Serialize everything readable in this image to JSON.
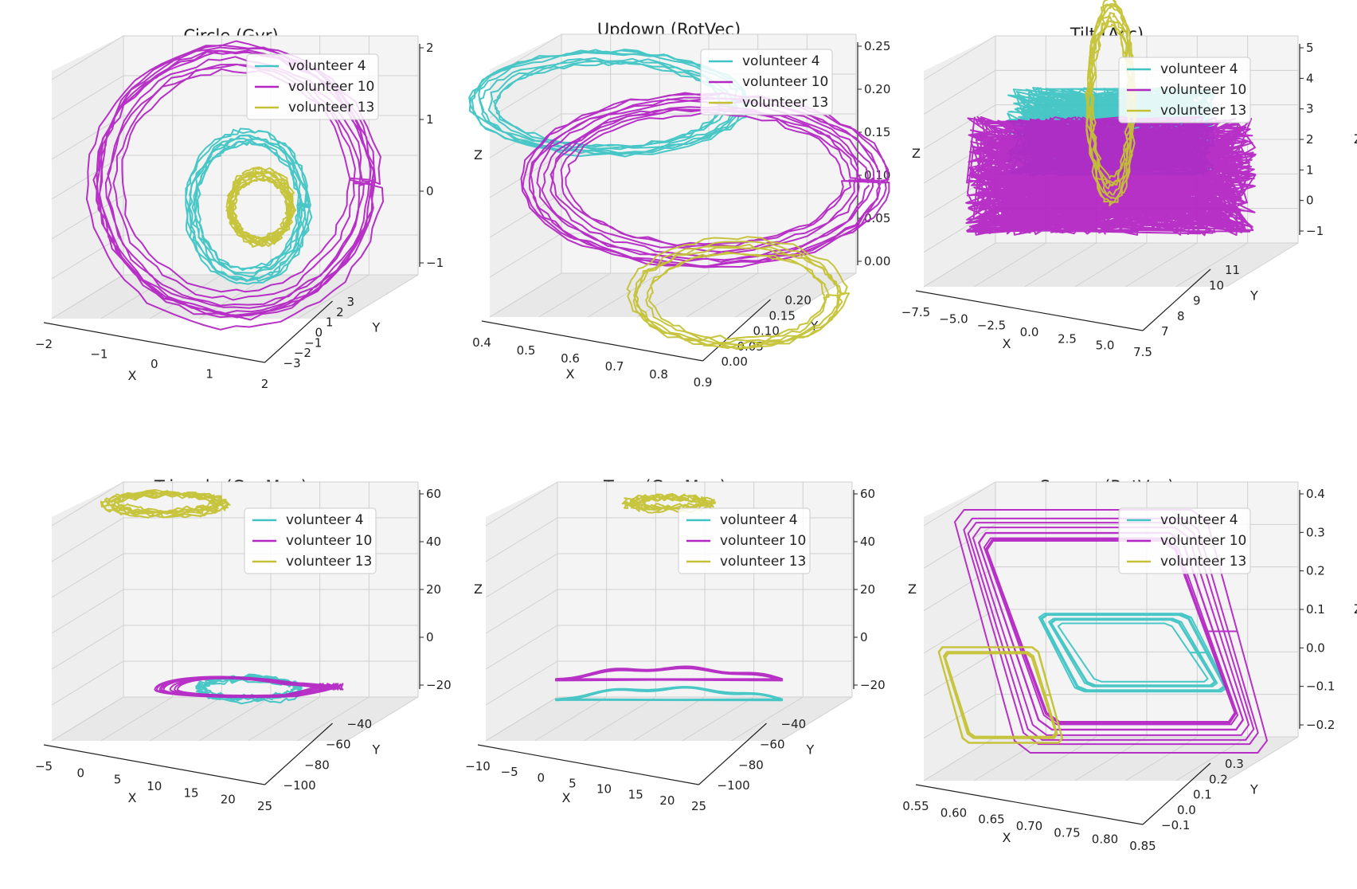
{
  "figure": {
    "legend": [
      "volunteer 4",
      "volunteer 10",
      "volunteer 13"
    ],
    "colors": {
      "v4": "#3fc4c4",
      "v10": "#b326c4",
      "v13": "#c4c234"
    },
    "pane_color": "#eeeeee",
    "grid_color": "#d0d0d0"
  },
  "chart_data": [
    {
      "type": "line3d",
      "title": "Circle (Gyr)",
      "xlabel": "X",
      "ylabel": "Y",
      "zlabel": "Z",
      "xticks": [
        "−2",
        "−1",
        "0",
        "1",
        "2"
      ],
      "yticks": [
        "−3",
        "−2",
        "−1",
        "0",
        "1",
        "2",
        "3"
      ],
      "zticks": [
        "−1",
        "0",
        "1",
        "2"
      ],
      "xlim": [
        -2.5,
        2.5
      ],
      "ylim": [
        -3.5,
        3.5
      ],
      "zlim": [
        -1.5,
        2.5
      ],
      "legend_position": "top-right",
      "series": [
        {
          "name": "volunteer 4",
          "shape": "loops",
          "center": [
            0.2,
            0.0
          ],
          "radius": [
            0.9,
            1.2
          ],
          "loops": 8
        },
        {
          "name": "volunteer 10",
          "shape": "loops",
          "center": [
            0.0,
            0.4
          ],
          "radius": [
            2.0,
            2.1
          ],
          "loops": 10
        },
        {
          "name": "volunteer 13",
          "shape": "loops",
          "center": [
            0.4,
            0.0
          ],
          "radius": [
            0.45,
            0.55
          ],
          "loops": 10
        }
      ]
    },
    {
      "type": "line3d",
      "title": "Updown (RotVec)",
      "xlabel": "X",
      "ylabel": "Y",
      "zlabel": "Z",
      "xticks": [
        "0.4",
        "0.5",
        "0.6",
        "0.7",
        "0.8",
        "0.9"
      ],
      "yticks": [
        "0.00",
        "0.05",
        "0.10",
        "0.15",
        "0.20"
      ],
      "zticks": [
        "0.00",
        "0.05",
        "0.10",
        "0.15",
        "0.20",
        "0.25"
      ],
      "xlim": [
        0.4,
        0.9
      ],
      "ylim": [
        0.0,
        0.2
      ],
      "zlim": [
        0.0,
        0.25
      ],
      "legend_position": "top-right",
      "series": [
        {
          "name": "volunteer 4",
          "shape": "loops",
          "center": [
            0.55,
            0.2
          ],
          "radius": [
            0.2,
            0.05
          ],
          "loops": 8
        },
        {
          "name": "volunteer 10",
          "shape": "loops",
          "center": [
            0.7,
            0.12
          ],
          "radius": [
            0.25,
            0.08
          ],
          "loops": 10
        },
        {
          "name": "volunteer 13",
          "shape": "loops",
          "center": [
            0.75,
            0.0
          ],
          "radius": [
            0.15,
            0.05
          ],
          "loops": 6
        }
      ]
    },
    {
      "type": "line3d",
      "title": "Tilt (Acc)",
      "xlabel": "X",
      "ylabel": "Y",
      "zlabel": "Z",
      "xticks": [
        "−7.5",
        "−5.0",
        "−2.5",
        "0.0",
        "2.5",
        "5.0",
        "7.5"
      ],
      "yticks": [
        "7",
        "8",
        "9",
        "10",
        "11"
      ],
      "zticks": [
        "−1",
        "0",
        "1",
        "2",
        "3",
        "4",
        "5"
      ],
      "xlim": [
        -8,
        8
      ],
      "ylim": [
        7,
        11
      ],
      "zlim": [
        -1.5,
        5.5
      ],
      "legend_position": "top-right",
      "series": [
        {
          "name": "volunteer 4",
          "shape": "scribble",
          "center": [
            0.0,
            3.0
          ],
          "radius": [
            5.0,
            1.5
          ],
          "loops": 12
        },
        {
          "name": "volunteer 10",
          "shape": "scribble",
          "center": [
            0.0,
            1.5
          ],
          "radius": [
            7.0,
            2.0
          ],
          "loops": 20
        },
        {
          "name": "volunteer 13",
          "shape": "loops",
          "center": [
            0.0,
            4.0
          ],
          "radius": [
            1.0,
            3.0
          ],
          "loops": 8
        }
      ]
    },
    {
      "type": "line3d",
      "title": "Triangle (GeoMag)",
      "xlabel": "X",
      "ylabel": "Y",
      "zlabel": "Z",
      "xticks": [
        "−5",
        "0",
        "5",
        "10",
        "15",
        "20",
        "25"
      ],
      "yticks": [
        "−100",
        "−80",
        "−60",
        "−40"
      ],
      "zticks": [
        "−20",
        "0",
        "20",
        "40",
        "60"
      ],
      "xlim": [
        -7,
        28
      ],
      "ylim": [
        -110,
        -35
      ],
      "zlim": [
        -35,
        75
      ],
      "legend_position": "top-right",
      "series": [
        {
          "name": "volunteer 4",
          "shape": "loops",
          "center": [
            12,
            -20
          ],
          "radius": [
            5,
            5
          ],
          "loops": 6
        },
        {
          "name": "volunteer 10",
          "shape": "triangle",
          "center": [
            12,
            -20
          ],
          "radius": [
            9,
            10
          ],
          "loops": 8
        },
        {
          "name": "volunteer 13",
          "shape": "loops",
          "center": [
            3,
            75
          ],
          "radius": [
            6,
            5
          ],
          "loops": 8
        }
      ]
    },
    {
      "type": "line3d",
      "title": "Turn (GeoMag)",
      "xlabel": "X",
      "ylabel": "Y",
      "zlabel": "Z",
      "xticks": [
        "−10",
        "−5",
        "0",
        "5",
        "10",
        "15",
        "20",
        "25"
      ],
      "yticks": [
        "−100",
        "−80",
        "−60",
        "−40"
      ],
      "zticks": [
        "−20",
        "0",
        "20",
        "40",
        "60"
      ],
      "xlim": [
        -12,
        28
      ],
      "ylim": [
        -110,
        -35
      ],
      "zlim": [
        -35,
        75
      ],
      "legend_position": "top-right",
      "series": [
        {
          "name": "volunteer 4",
          "shape": "arc",
          "center": [
            8,
            -25
          ],
          "radius": [
            14,
            4
          ],
          "loops": 6
        },
        {
          "name": "volunteer 10",
          "shape": "arc",
          "center": [
            8,
            -15
          ],
          "radius": [
            14,
            4
          ],
          "loops": 6
        },
        {
          "name": "volunteer 13",
          "shape": "loops",
          "center": [
            8,
            75
          ],
          "radius": [
            5,
            3
          ],
          "loops": 6
        }
      ]
    },
    {
      "type": "line3d",
      "title": "Square (RotVec)",
      "xlabel": "X",
      "ylabel": "Y",
      "zlabel": "Z",
      "xticks": [
        "0.55",
        "0.60",
        "0.65",
        "0.70",
        "0.75",
        "0.80",
        "0.85"
      ],
      "yticks": [
        "−0.1",
        "0.0",
        "0.1",
        "0.2",
        "0.3"
      ],
      "zticks": [
        "−0.2",
        "−0.1",
        "0.0",
        "0.1",
        "0.2",
        "0.3",
        "0.4"
      ],
      "xlim": [
        0.55,
        0.85
      ],
      "ylim": [
        -0.1,
        0.3
      ],
      "zlim": [
        -0.2,
        0.4
      ],
      "legend_position": "top-right",
      "series": [
        {
          "name": "volunteer 4",
          "shape": "square",
          "center": [
            0.72,
            0.05
          ],
          "radius": [
            0.06,
            0.08
          ],
          "loops": 8
        },
        {
          "name": "volunteer 10",
          "shape": "square",
          "center": [
            0.7,
            0.1
          ],
          "radius": [
            0.1,
            0.25
          ],
          "loops": 10
        },
        {
          "name": "volunteer 13",
          "shape": "square",
          "center": [
            0.6,
            -0.05
          ],
          "radius": [
            0.04,
            0.1
          ],
          "loops": 8
        }
      ]
    }
  ]
}
